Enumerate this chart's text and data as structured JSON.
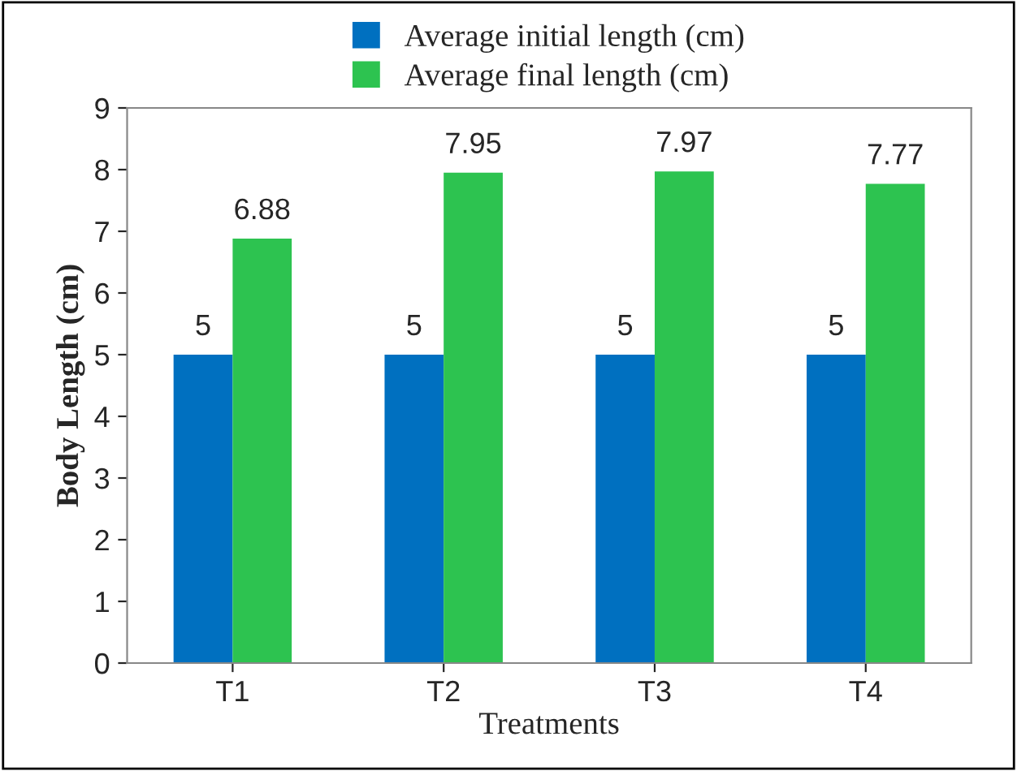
{
  "chart_data": {
    "type": "bar",
    "xlabel": "Treatments",
    "ylabel": "Body Length (cm)",
    "categories": [
      "T1",
      "T2",
      "T3",
      "T4"
    ],
    "series": [
      {
        "name": "Average initial length (cm)",
        "color": "#0070c0",
        "values": [
          5,
          5,
          5,
          5
        ]
      },
      {
        "name": "Average final length (cm)",
        "color": "#2dc350",
        "values": [
          6.88,
          7.95,
          7.97,
          7.77
        ]
      }
    ],
    "ylim": [
      0,
      9
    ],
    "yticks": [
      0,
      1,
      2,
      3,
      4,
      5,
      6,
      7,
      8,
      9
    ],
    "grid": false,
    "legend": "top",
    "data_labels": true
  }
}
